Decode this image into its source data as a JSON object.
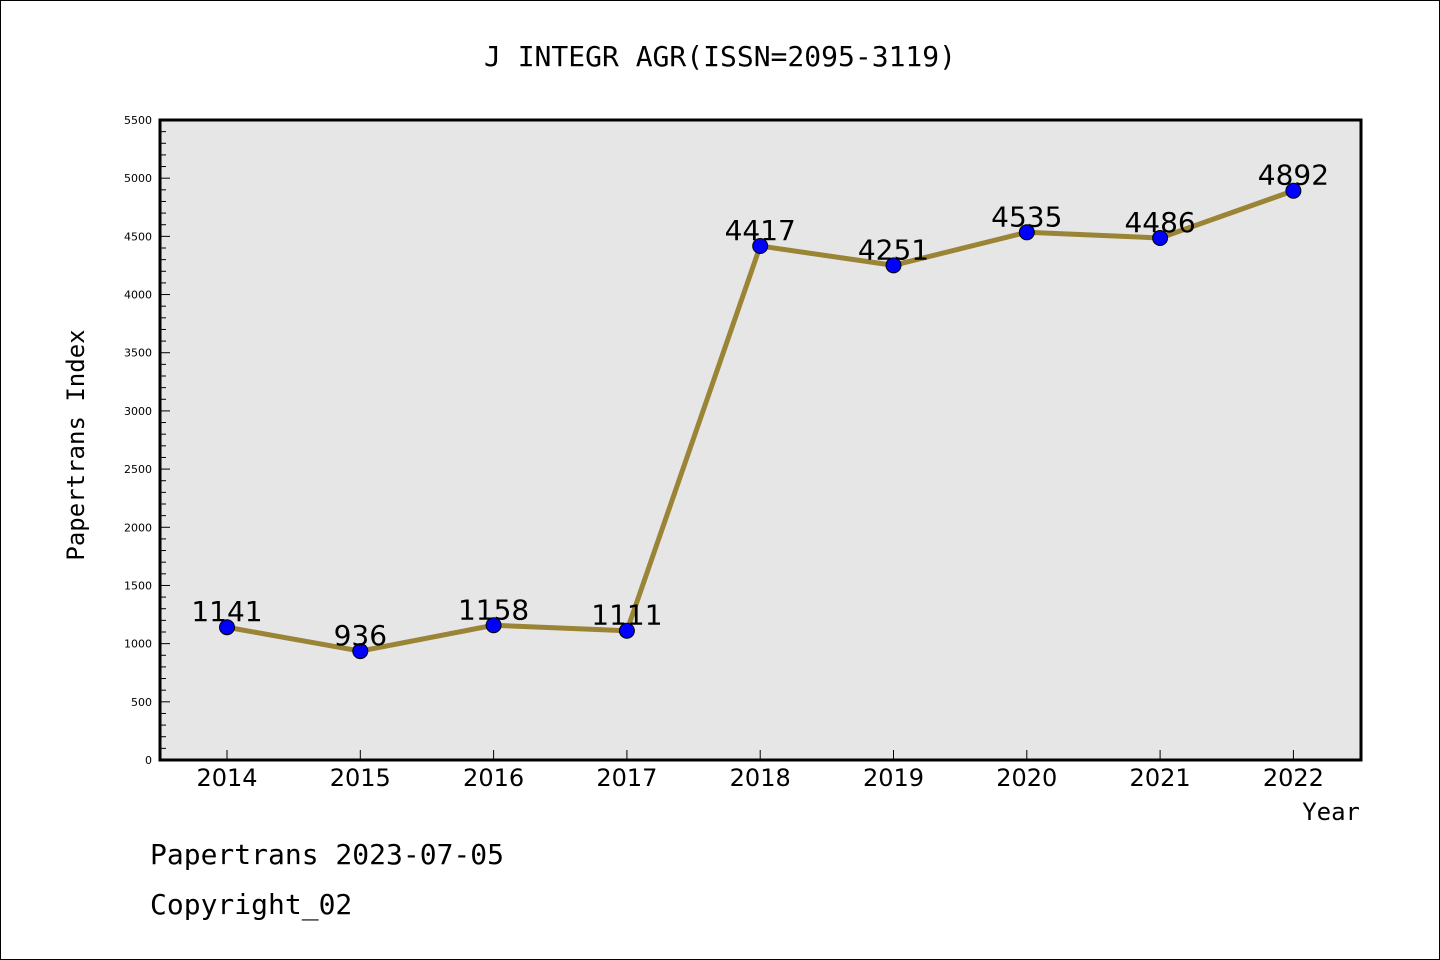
{
  "chart_data": {
    "type": "line",
    "title": "J INTEGR AGR(ISSN=2095-3119)",
    "xlabel": "Year",
    "ylabel": "Papertrans Index",
    "categories": [
      "2014",
      "2015",
      "2016",
      "2017",
      "2018",
      "2019",
      "2020",
      "2021",
      "2022"
    ],
    "series": [
      {
        "values": [
          1141,
          936,
          1158,
          1111,
          4417,
          4251,
          4535,
          4486,
          4892
        ],
        "line_color": "#9a8435",
        "marker_color": "#0000ff"
      }
    ],
    "data_labels": [
      "1141",
      "936",
      "1158",
      "1111",
      "4417",
      "4251",
      "4535",
      "4486",
      "4892"
    ],
    "ylim": [
      0,
      5500
    ],
    "y_ticks": [
      "0",
      "500",
      "1000",
      "1500",
      "2000",
      "2500",
      "3000",
      "3500",
      "4000",
      "4500",
      "5000",
      "5500"
    ],
    "grid": false,
    "plot_background": "#e6e6e6"
  },
  "footer": {
    "line1": "Papertrans 2023-07-05",
    "line2": "Copyright_02"
  }
}
